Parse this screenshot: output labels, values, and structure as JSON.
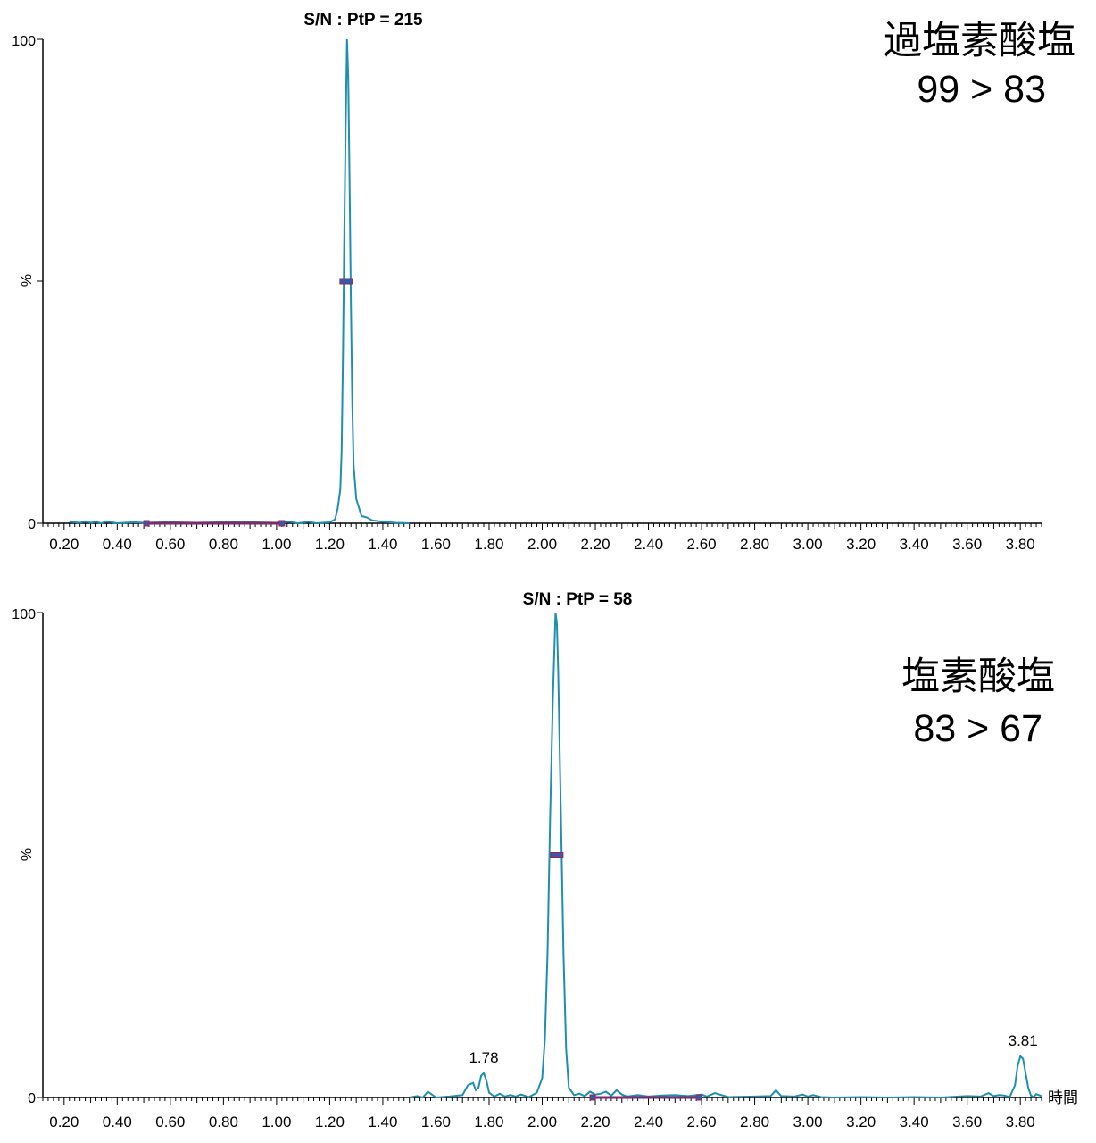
{
  "chart_data": [
    {
      "type": "line",
      "title": "S/N : PtP = 215",
      "annotation_lines": [
        "過塩素酸塩",
        "99 > 83"
      ],
      "xlabel": "",
      "ylabel": "%",
      "xlim": [
        0.12,
        3.88
      ],
      "ylim": [
        0,
        100
      ],
      "x_ticks": [
        "0.20",
        "0.40",
        "0.60",
        "0.80",
        "1.00",
        "1.20",
        "1.40",
        "1.60",
        "1.80",
        "2.00",
        "2.20",
        "2.40",
        "2.60",
        "2.80",
        "3.00",
        "3.20",
        "3.40",
        "3.60",
        "3.80"
      ],
      "y_ticks": [
        "0",
        "100"
      ],
      "y_mid_label": "%",
      "peak_labels": [],
      "baseline_segment": [
        0.51,
        1.02
      ],
      "half_height_marker": {
        "x": 1.262,
        "y": 50
      },
      "series": [
        {
          "color": "#1f8fb0",
          "x": [
            0.22,
            0.26,
            0.28,
            0.3,
            0.32,
            0.34,
            0.36,
            0.4,
            0.46,
            0.5,
            0.6,
            0.7,
            0.8,
            0.9,
            1.0,
            1.05,
            1.08,
            1.12,
            1.15,
            1.2,
            1.22,
            1.23,
            1.24,
            1.245,
            1.25,
            1.255,
            1.26,
            1.265,
            1.27,
            1.275,
            1.28,
            1.285,
            1.29,
            1.3,
            1.32,
            1.34,
            1.36,
            1.4,
            1.45,
            1.5
          ],
          "y": [
            0.3,
            0.1,
            0.4,
            0.1,
            0.3,
            0.0,
            0.4,
            0.0,
            0.2,
            0.1,
            0.2,
            0.1,
            0.2,
            0.2,
            0.1,
            0.3,
            0.0,
            0.3,
            0.0,
            0.2,
            0.8,
            3,
            7,
            15,
            35,
            60,
            82,
            100,
            92,
            70,
            45,
            25,
            12,
            5,
            1.5,
            1.2,
            0.6,
            0.3,
            0.1,
            0.0
          ]
        }
      ]
    },
    {
      "type": "line",
      "title": "S/N : PtP = 58",
      "annotation_lines": [
        "塩素酸塩",
        "83 > 67"
      ],
      "xlabel": "時間",
      "ylabel": "%",
      "xlim": [
        0.12,
        3.88
      ],
      "ylim": [
        0,
        100
      ],
      "x_ticks": [
        "0.20",
        "0.40",
        "0.60",
        "0.80",
        "1.00",
        "1.20",
        "1.40",
        "1.60",
        "1.80",
        "2.00",
        "2.20",
        "2.40",
        "2.60",
        "2.80",
        "3.00",
        "3.20",
        "3.40",
        "3.60",
        "3.80"
      ],
      "y_ticks": [
        "0",
        "100"
      ],
      "y_mid_label": "%",
      "peak_labels": [
        {
          "x": 1.78,
          "y": 5,
          "text": "1.78"
        },
        {
          "x": 3.81,
          "y": 8.5,
          "text": "3.81"
        }
      ],
      "baseline_segment": [
        2.19,
        2.59
      ],
      "half_height_marker": {
        "x": 2.055,
        "y": 50
      },
      "series": [
        {
          "color": "#1f8fb0",
          "x": [
            1.5,
            1.53,
            1.55,
            1.57,
            1.6,
            1.65,
            1.7,
            1.72,
            1.74,
            1.75,
            1.76,
            1.77,
            1.78,
            1.79,
            1.8,
            1.82,
            1.84,
            1.86,
            1.88,
            1.9,
            1.92,
            1.95,
            1.98,
            2.0,
            2.01,
            2.02,
            2.03,
            2.04,
            2.05,
            2.055,
            2.06,
            2.07,
            2.08,
            2.09,
            2.1,
            2.12,
            2.14,
            2.16,
            2.18,
            2.2,
            2.22,
            2.24,
            2.26,
            2.28,
            2.3,
            2.32,
            2.36,
            2.4,
            2.45,
            2.5,
            2.55,
            2.6,
            2.62,
            2.65,
            2.7,
            2.8,
            2.86,
            2.88,
            2.9,
            2.95,
            2.98,
            3.0,
            3.02,
            3.05,
            3.1,
            3.2,
            3.3,
            3.4,
            3.5,
            3.6,
            3.65,
            3.68,
            3.7,
            3.72,
            3.74,
            3.76,
            3.78,
            3.79,
            3.8,
            3.81,
            3.82,
            3.83,
            3.84,
            3.85,
            3.86,
            3.88
          ],
          "y": [
            0.0,
            0.3,
            0.0,
            1.2,
            0.0,
            0.2,
            0.5,
            2.5,
            3.0,
            1.5,
            2.0,
            4.5,
            5.0,
            3.5,
            1.0,
            0.2,
            0.8,
            0.2,
            0.5,
            0.2,
            0.6,
            0.1,
            1.0,
            4.0,
            12,
            30,
            58,
            82,
            100,
            98,
            88,
            60,
            30,
            10,
            2.0,
            0.5,
            0.8,
            0.3,
            1.2,
            0.6,
            0.8,
            1.2,
            0.4,
            1.5,
            0.6,
            0.2,
            0.5,
            0.2,
            0.4,
            0.5,
            0.3,
            0.6,
            0.2,
            0.9,
            0.1,
            0.2,
            0.3,
            1.5,
            0.3,
            0.2,
            0.6,
            0.2,
            0.5,
            0.1,
            0.0,
            0.1,
            0.0,
            0.1,
            0.0,
            0.3,
            0.2,
            0.9,
            0.3,
            0.5,
            0.4,
            0.1,
            2.5,
            6.5,
            8.5,
            8.0,
            5.0,
            2.0,
            0.4,
            0.1,
            0.7,
            0.3
          ]
        }
      ]
    }
  ]
}
